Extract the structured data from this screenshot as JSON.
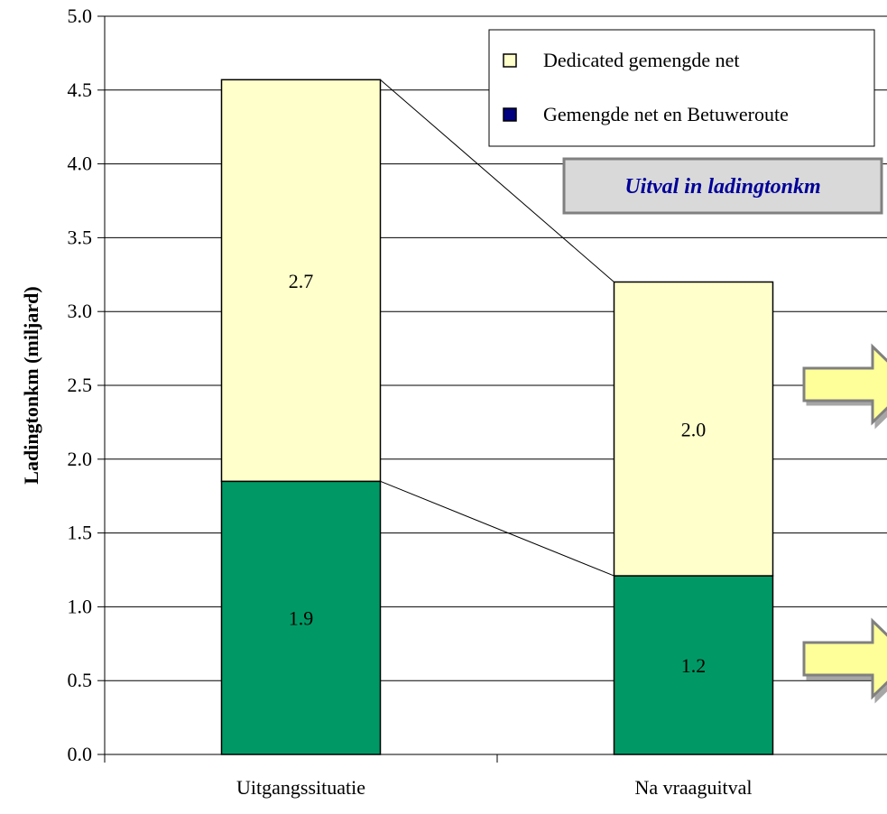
{
  "chart_data": {
    "type": "bar",
    "stacked": true,
    "categories": [
      "Uitgangssituatie",
      "Na vraaguitval"
    ],
    "series": [
      {
        "name": "Gemengde net en Betuweroute",
        "values": [
          1.85,
          1.21
        ],
        "labels": [
          "1.9",
          "1.2"
        ],
        "color": "#009966"
      },
      {
        "name": "Dedicated gemengde net",
        "values": [
          2.72,
          1.99
        ],
        "labels": [
          "2.7",
          "2.0"
        ],
        "color": "#FFFFCC"
      }
    ],
    "ylabel": "Ladingtonkm (miljard)",
    "xlabel": "",
    "ylim": [
      0,
      5
    ],
    "yticks": [
      "0.0",
      "0.5",
      "1.0",
      "1.5",
      "2.0",
      "2.5",
      "3.0",
      "3.5",
      "4.0",
      "4.5",
      "5.0"
    ],
    "grid": true,
    "legend": {
      "placement": "top-right",
      "entries": [
        {
          "label": "Dedicated gemengde net",
          "swatch": "#FFFFCC"
        },
        {
          "label": "Gemengde net en Betuweroute",
          "swatch": "#000080"
        }
      ]
    },
    "annotation": {
      "text": "Uitval in ladingtonkm",
      "color": "#000099",
      "background": "#D9D9D9"
    },
    "arrows": {
      "count": 2,
      "color": "#FFFF99",
      "direction": "right"
    }
  }
}
